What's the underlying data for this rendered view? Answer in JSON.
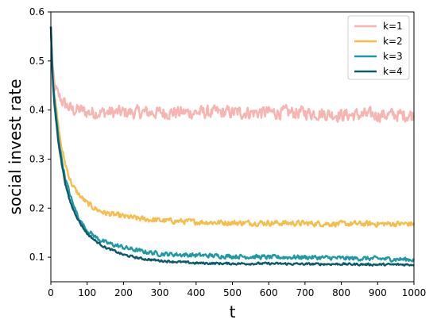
{
  "chart_data": {
    "type": "line",
    "xlabel": "t",
    "ylabel": "social invest rate",
    "xlim": [
      0,
      1000
    ],
    "ylim": [
      0.05,
      0.6
    ],
    "xticks": [
      0,
      100,
      200,
      300,
      400,
      500,
      600,
      700,
      800,
      900,
      1000
    ],
    "yticks": [
      0.1,
      0.2,
      0.3,
      0.4,
      0.5,
      0.6
    ],
    "grid": false,
    "legend_position": "top-right",
    "series": [
      {
        "name": "k=1",
        "color": "#f8b4b0",
        "x": [
          0,
          5,
          10,
          20,
          30,
          40,
          60,
          80,
          100,
          150,
          200,
          300,
          400,
          500,
          600,
          700,
          800,
          900,
          1000
        ],
        "y": [
          0.57,
          0.48,
          0.45,
          0.43,
          0.42,
          0.41,
          0.4,
          0.4,
          0.395,
          0.395,
          0.395,
          0.395,
          0.395,
          0.395,
          0.395,
          0.395,
          0.39,
          0.39,
          0.39
        ],
        "noise": 0.012
      },
      {
        "name": "k=2",
        "color": "#f6bd4b",
        "x": [
          0,
          5,
          10,
          20,
          30,
          40,
          50,
          60,
          80,
          100,
          125,
          150,
          200,
          250,
          300,
          400,
          500,
          600,
          700,
          800,
          900,
          1000
        ],
        "y": [
          0.57,
          0.47,
          0.43,
          0.37,
          0.32,
          0.29,
          0.265,
          0.245,
          0.225,
          0.21,
          0.198,
          0.19,
          0.183,
          0.178,
          0.175,
          0.172,
          0.17,
          0.17,
          0.169,
          0.168,
          0.168,
          0.168
        ],
        "noise": 0.005
      },
      {
        "name": "k=3",
        "color": "#1f9aa4",
        "x": [
          0,
          5,
          10,
          20,
          30,
          40,
          50,
          60,
          80,
          100,
          125,
          150,
          200,
          250,
          300,
          400,
          500,
          600,
          700,
          800,
          900,
          1000
        ],
        "y": [
          0.57,
          0.47,
          0.42,
          0.35,
          0.3,
          0.26,
          0.235,
          0.21,
          0.175,
          0.155,
          0.14,
          0.13,
          0.12,
          0.112,
          0.107,
          0.104,
          0.102,
          0.1,
          0.1,
          0.098,
          0.097,
          0.095
        ],
        "noise": 0.004
      },
      {
        "name": "k=4",
        "color": "#0d5a6b",
        "x": [
          0,
          5,
          10,
          20,
          30,
          40,
          50,
          60,
          80,
          100,
          125,
          150,
          200,
          250,
          300,
          400,
          500,
          600,
          700,
          800,
          900,
          1000
        ],
        "y": [
          0.57,
          0.46,
          0.41,
          0.34,
          0.29,
          0.25,
          0.22,
          0.2,
          0.17,
          0.148,
          0.132,
          0.12,
          0.105,
          0.097,
          0.093,
          0.088,
          0.087,
          0.087,
          0.086,
          0.086,
          0.085,
          0.085
        ],
        "noise": 0.002
      }
    ]
  }
}
